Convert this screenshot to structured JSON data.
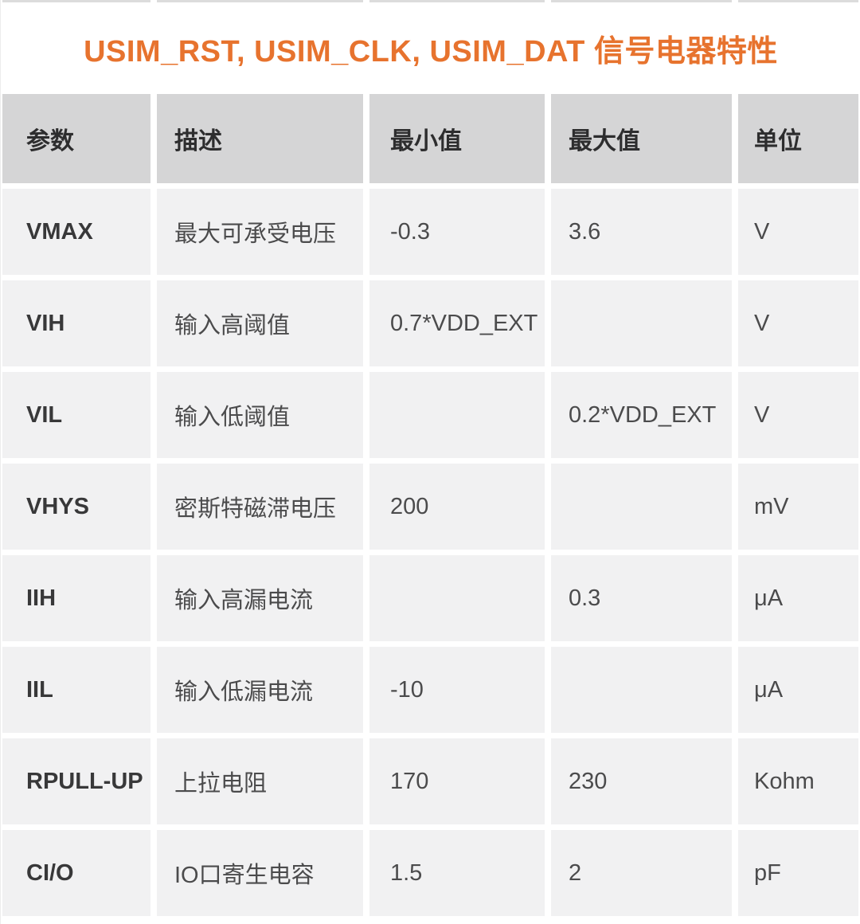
{
  "title": "USIM_RST, USIM_CLK, USIM_DAT 信号电器特性",
  "colors": {
    "title_orange": "#e7732e",
    "header_cell_bg": "#d5d5d6",
    "body_cell_bg": "#f1f1f2",
    "page_bg": "#ffffff",
    "body_text": "#4b4b4c",
    "header_text": "#2d2d2e"
  },
  "table": {
    "columns": [
      "参数",
      "描述",
      "最小值",
      "最大值",
      "单位"
    ],
    "rows": [
      {
        "param": "VMAX",
        "description": "最大可承受电压",
        "min": "-0.3",
        "max": "3.6",
        "unit": "V"
      },
      {
        "param": "VIH",
        "description": "输入高阈值",
        "min": "0.7*VDD_EXT",
        "max": "",
        "unit": "V"
      },
      {
        "param": "VIL",
        "description": "输入低阈值",
        "min": "",
        "max": "0.2*VDD_EXT",
        "unit": "V"
      },
      {
        "param": "VHYS",
        "description": "密斯特磁滞电压",
        "min": "200",
        "max": "",
        "unit": "mV"
      },
      {
        "param": "IIH",
        "description": "输入高漏电流",
        "min": "",
        "max": "0.3",
        "unit": "μA"
      },
      {
        "param": "IIL",
        "description": "输入低漏电流",
        "min": "-10",
        "max": "",
        "unit": "μA"
      },
      {
        "param": "RPULL-UP",
        "description": "上拉电阻",
        "min": "170",
        "max": "230",
        "unit": "Kohm"
      },
      {
        "param": "CI/O",
        "description": "IO口寄生电容",
        "min": "1.5",
        "max": "2",
        "unit": "pF"
      }
    ]
  }
}
